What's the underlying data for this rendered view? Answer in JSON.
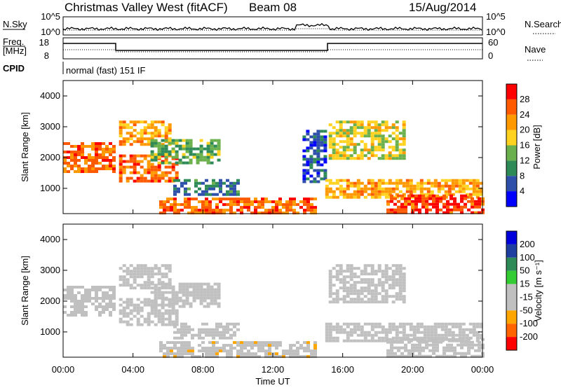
{
  "header": {
    "station": "Christmas Valley West (fitACF)",
    "beam": "Beam 08",
    "date": "15/Aug/2014"
  },
  "params": {
    "nsky_label": "N.Sky",
    "nsearch_label": "N.Search",
    "freq_label_1": "Freq.",
    "freq_label_2": "[MHz]",
    "nave_label": "Nave",
    "cpid_label": "CPID",
    "cpid_text": "normal (fast) 151 IF",
    "noise_left_ticks": [
      "10^5",
      "10^0"
    ],
    "noise_right_ticks": [
      "10^5",
      "10^0"
    ],
    "freq_left_ticks": [
      "18",
      "8"
    ],
    "nave_right_ticks": [
      "60",
      "0"
    ]
  },
  "colors": {
    "power": [
      "#0000ff",
      "#2e4faa",
      "#2e8b57",
      "#6ab04c",
      "#ffd21f",
      "#ff9900",
      "#ff5a00",
      "#ff0000"
    ],
    "velocity": [
      "#ff0000",
      "#ff6400",
      "#ffa500",
      "#c0c0c0",
      "#c0c0c0",
      "#33cc33",
      "#2e8b57",
      "#1f3fa0",
      "#0000dd"
    ],
    "frame": "#000000"
  },
  "chart_data": [
    {
      "type": "heatmap",
      "title": "Power",
      "ylabel": "Slant Range [km]",
      "xlabel": "",
      "ylim": [
        180,
        4500
      ],
      "xlim": [
        "00:00",
        "24:00"
      ],
      "yticks": [
        "1000",
        "2000",
        "3000",
        "4000"
      ],
      "colorbar": {
        "label": "Power [dB]",
        "ticks": [
          "4",
          "8",
          "12",
          "16",
          "20",
          "24",
          "28"
        ],
        "range": [
          0,
          30
        ]
      },
      "regions": [
        {
          "t0": 0.0,
          "t1": 3.0,
          "r0": 1500,
          "r1": 2500,
          "value": 24
        },
        {
          "t0": 3.2,
          "t1": 6.2,
          "r0": 2450,
          "r1": 3200,
          "value": 20
        },
        {
          "t0": 3.2,
          "t1": 6.5,
          "r0": 1200,
          "r1": 2100,
          "value": 24
        },
        {
          "t0": 5.0,
          "t1": 9.0,
          "r0": 1800,
          "r1": 2600,
          "value": 12
        },
        {
          "t0": 6.3,
          "t1": 10.0,
          "r0": 800,
          "r1": 1300,
          "value": 8
        },
        {
          "t0": 5.5,
          "t1": 14.5,
          "r0": 200,
          "r1": 700,
          "value": 24
        },
        {
          "t0": 13.7,
          "t1": 15.0,
          "r0": 1200,
          "r1": 2900,
          "value": 6
        },
        {
          "t0": 15.2,
          "t1": 19.5,
          "r0": 2000,
          "r1": 3200,
          "value": 16
        },
        {
          "t0": 15.0,
          "t1": 24.0,
          "r0": 700,
          "r1": 1300,
          "value": 20
        },
        {
          "t0": 18.5,
          "t1": 24.0,
          "r0": 200,
          "r1": 800,
          "value": 26
        }
      ]
    },
    {
      "type": "heatmap",
      "title": "Velocity",
      "ylabel": "Slant Range [km]",
      "xlabel": "Time UT",
      "ylim": [
        180,
        4500
      ],
      "xlim": [
        "00:00",
        "24:00"
      ],
      "xticks": [
        "00:00",
        "04:00",
        "08:00",
        "12:00",
        "16:00",
        "20:00",
        "00:00"
      ],
      "yticks": [
        "1000",
        "2000",
        "3000",
        "4000"
      ],
      "colorbar": {
        "label": "Velocity [m s^-1]",
        "ticks": [
          "200",
          "100",
          "50",
          "15",
          "-15",
          "-50",
          "-100",
          "-200"
        ],
        "range": [
          -250,
          250
        ]
      },
      "regions": [
        {
          "t0": 0.0,
          "t1": 3.0,
          "r0": 1500,
          "r1": 2500,
          "value": 0
        },
        {
          "t0": 3.2,
          "t1": 6.2,
          "r0": 2450,
          "r1": 3200,
          "value": -60
        },
        {
          "t0": 3.2,
          "t1": 6.5,
          "r0": 1200,
          "r1": 2100,
          "value": 0
        },
        {
          "t0": 5.0,
          "t1": 9.0,
          "r0": 1800,
          "r1": 2600,
          "value": 0
        },
        {
          "t0": 6.3,
          "t1": 10.0,
          "r0": 800,
          "r1": 1300,
          "value": 0
        },
        {
          "t0": 5.5,
          "t1": 14.5,
          "r0": 200,
          "r1": 700,
          "value": -80
        },
        {
          "t0": 15.2,
          "t1": 19.5,
          "r0": 2000,
          "r1": 3200,
          "value": 0
        },
        {
          "t0": 15.0,
          "t1": 24.0,
          "r0": 700,
          "r1": 1300,
          "value": 0
        },
        {
          "t0": 18.5,
          "t1": 24.0,
          "r0": 200,
          "r1": 800,
          "value": 0
        }
      ]
    }
  ]
}
